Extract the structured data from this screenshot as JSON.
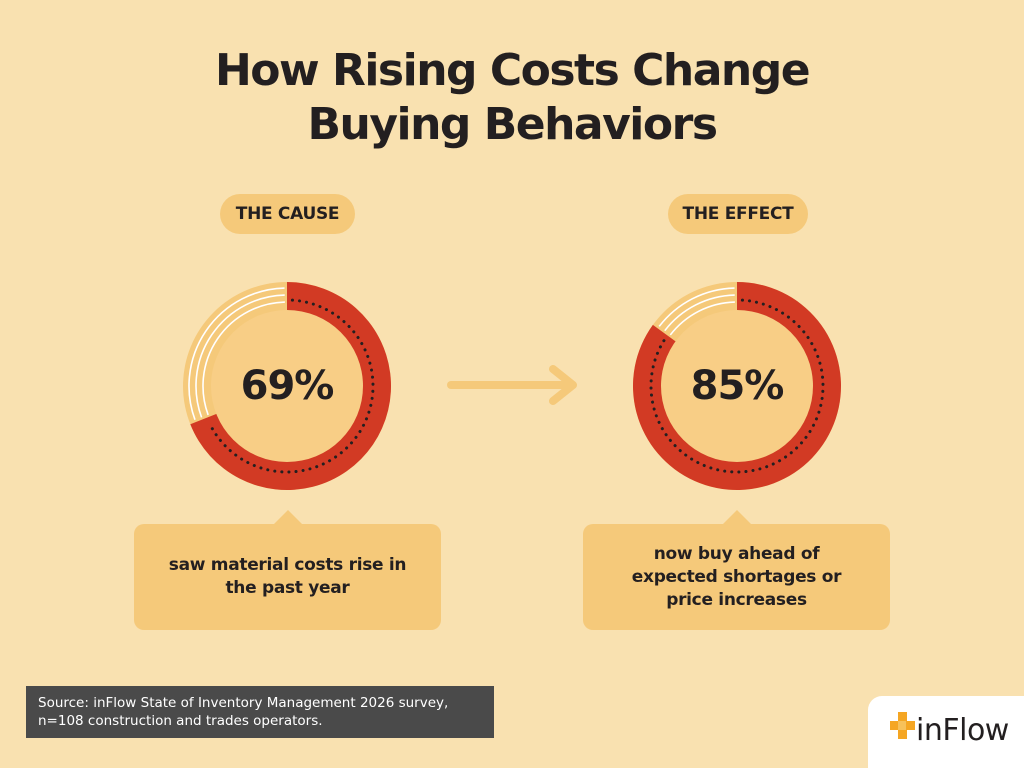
{
  "title": {
    "line1": "How Rising Costs Change",
    "line2": "Buying Behaviors"
  },
  "chart_data": [
    {
      "type": "pie",
      "label": "THE CAUSE",
      "value_label": "69%",
      "values": [
        69,
        31
      ],
      "categories": [
        "saw material costs rise in the past year",
        ""
      ],
      "description": "saw material costs rise in the past year"
    },
    {
      "type": "pie",
      "label": "THE EFFECT",
      "value_label": "85%",
      "values": [
        85,
        15
      ],
      "categories": [
        "now buy ahead of expected shortages or price increases",
        ""
      ],
      "description": "now buy ahead of expected shortages or price increases"
    }
  ],
  "colors": {
    "background": "#F9E1B0",
    "accent_red": "#D23A24",
    "light_orange": "#F5C97A",
    "source_box": "#4A4A4A",
    "logo_orange": "#F5A623"
  },
  "source": {
    "line1": "Source: inFlow State of Inventory Management 2026 survey,",
    "line2": "n=108 construction and trades operators."
  },
  "logo": {
    "text": "inFlow",
    "icon": "inflow-logo-icon"
  },
  "arrow_icon": "arrow-right-icon"
}
